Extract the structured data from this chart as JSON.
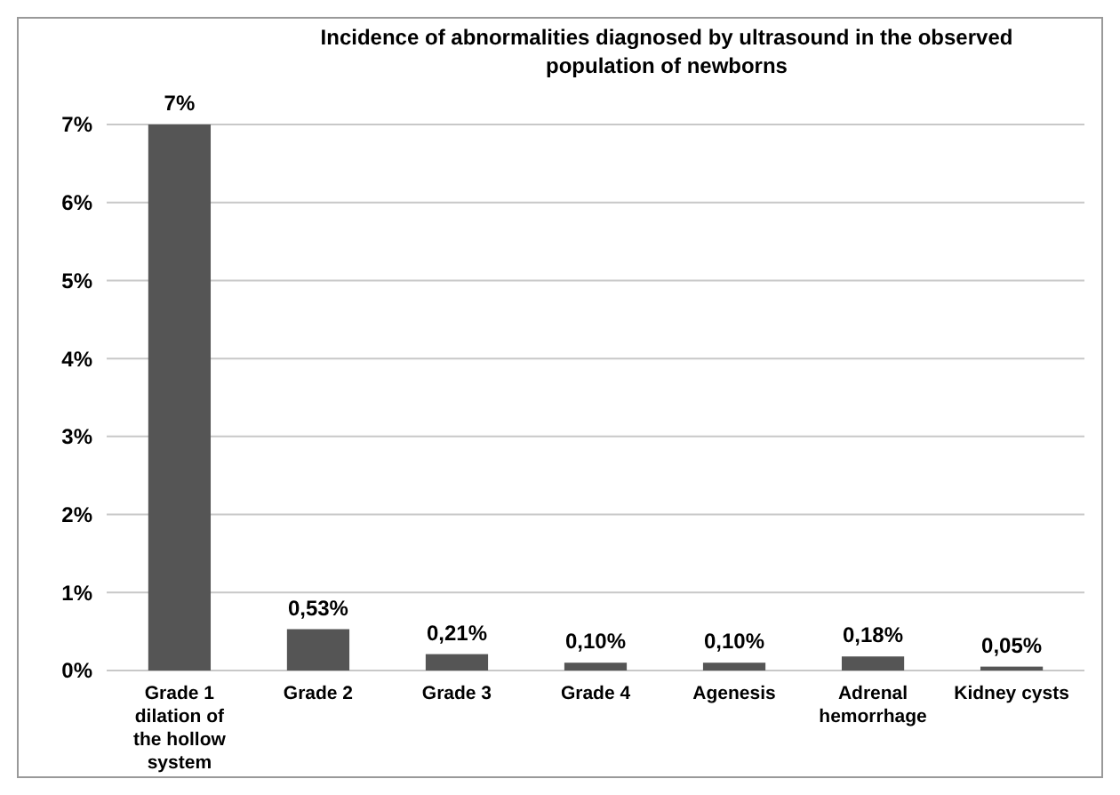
{
  "chart_data": {
    "type": "bar",
    "title": "Incidence of abnormalities diagnosed by ultrasound in the observed population of newborns",
    "categories": [
      "Grade 1 dilation of the hollow system",
      "Grade 2",
      "Grade 3",
      "Grade 4",
      "Agenesis",
      "Adrenal hemorrhage",
      "Kidney cysts"
    ],
    "values": [
      7,
      0.53,
      0.21,
      0.1,
      0.1,
      0.18,
      0.05
    ],
    "value_labels": [
      "7%",
      "0,53%",
      "0,21%",
      "0,10%",
      "0,10%",
      "0,18%",
      "0,05%"
    ],
    "color": "#555555",
    "ylim": [
      0,
      7
    ],
    "yticks": [
      {
        "value": 0,
        "label": "0%"
      },
      {
        "value": 1,
        "label": "1%"
      },
      {
        "value": 2,
        "label": "2%"
      },
      {
        "value": 3,
        "label": "3%"
      },
      {
        "value": 4,
        "label": "4%"
      },
      {
        "value": 5,
        "label": "5%"
      },
      {
        "value": 6,
        "label": "6%"
      },
      {
        "value": 7,
        "label": "7%"
      }
    ],
    "grid": "y"
  }
}
